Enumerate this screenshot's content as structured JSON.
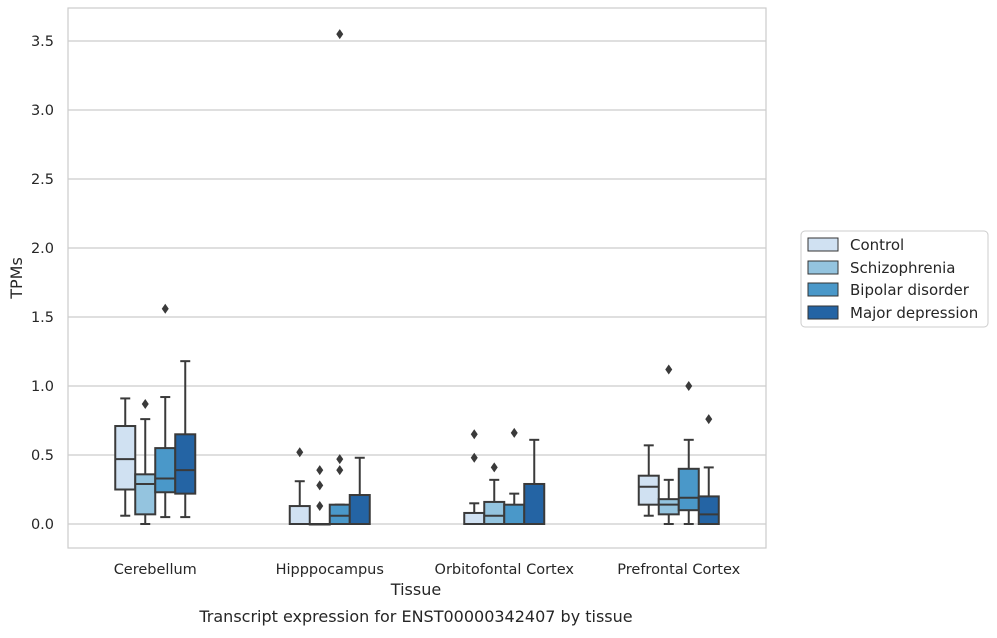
{
  "chart_data": {
    "type": "box",
    "caption": "Transcript expression for ENST00000342407 by tissue",
    "xlabel": "Tissue",
    "ylabel": "TPMs",
    "ylim": [
      -0.17,
      3.73
    ],
    "yticks": [
      0.0,
      0.5,
      1.0,
      1.5,
      2.0,
      2.5,
      3.0,
      3.5
    ],
    "ytick_labels": [
      "0.0",
      "0.5",
      "1.0",
      "1.5",
      "2.0",
      "2.5",
      "3.0",
      "3.5"
    ],
    "grid": "horizontal",
    "legend_placement": "right",
    "categories": [
      "Cerebellum",
      "Hipppocampus",
      "Orbitofontal Cortex",
      "Prefrontal Cortex"
    ],
    "series": [
      {
        "name": "Control",
        "color": "#d0e1f2",
        "boxes": [
          {
            "whislo": 0.06,
            "q1": 0.25,
            "med": 0.47,
            "q3": 0.71,
            "whishi": 0.91,
            "fliers": []
          },
          {
            "whislo": 0.0,
            "q1": 0.0,
            "med": 0.0,
            "q3": 0.13,
            "whishi": 0.31,
            "fliers": [
              0.52
            ]
          },
          {
            "whislo": 0.0,
            "q1": 0.0,
            "med": 0.0,
            "q3": 0.08,
            "whishi": 0.15,
            "fliers": [
              0.48,
              0.65
            ]
          },
          {
            "whislo": 0.06,
            "q1": 0.14,
            "med": 0.27,
            "q3": 0.35,
            "whishi": 0.57,
            "fliers": []
          }
        ]
      },
      {
        "name": "Schizophrenia",
        "color": "#94c4df",
        "boxes": [
          {
            "whislo": 0.0,
            "q1": 0.07,
            "med": 0.29,
            "q3": 0.36,
            "whishi": 0.76,
            "fliers": [
              0.87
            ]
          },
          {
            "whislo": 0.0,
            "q1": 0.0,
            "med": 0.0,
            "q3": 0.0,
            "whishi": 0.0,
            "fliers": [
              0.13,
              0.28,
              0.39
            ]
          },
          {
            "whislo": 0.0,
            "q1": 0.0,
            "med": 0.06,
            "q3": 0.16,
            "whishi": 0.32,
            "fliers": [
              0.41
            ]
          },
          {
            "whislo": 0.0,
            "q1": 0.07,
            "med": 0.14,
            "q3": 0.18,
            "whishi": 0.32,
            "fliers": [
              1.12
            ]
          }
        ]
      },
      {
        "name": "Bipolar disorder",
        "color": "#4a98c9",
        "boxes": [
          {
            "whislo": 0.05,
            "q1": 0.23,
            "med": 0.33,
            "q3": 0.55,
            "whishi": 0.92,
            "fliers": [
              1.56
            ]
          },
          {
            "whislo": 0.0,
            "q1": 0.0,
            "med": 0.06,
            "q3": 0.14,
            "whishi": 0.14,
            "fliers": [
              0.39,
              0.47,
              3.55
            ]
          },
          {
            "whislo": 0.0,
            "q1": 0.0,
            "med": 0.0,
            "q3": 0.14,
            "whishi": 0.22,
            "fliers": [
              0.66
            ]
          },
          {
            "whislo": 0.0,
            "q1": 0.1,
            "med": 0.19,
            "q3": 0.4,
            "whishi": 0.61,
            "fliers": [
              1.0
            ]
          }
        ]
      },
      {
        "name": "Major depression",
        "color": "#2464a4",
        "boxes": [
          {
            "whislo": 0.05,
            "q1": 0.22,
            "med": 0.39,
            "q3": 0.65,
            "whishi": 1.18,
            "fliers": []
          },
          {
            "whislo": 0.0,
            "q1": 0.0,
            "med": 0.0,
            "q3": 0.21,
            "whishi": 0.48,
            "fliers": []
          },
          {
            "whislo": 0.0,
            "q1": 0.0,
            "med": 0.0,
            "q3": 0.29,
            "whishi": 0.61,
            "fliers": []
          },
          {
            "whislo": 0.0,
            "q1": 0.0,
            "med": 0.07,
            "q3": 0.2,
            "whishi": 0.41,
            "fliers": [
              0.76
            ]
          }
        ]
      }
    ]
  }
}
